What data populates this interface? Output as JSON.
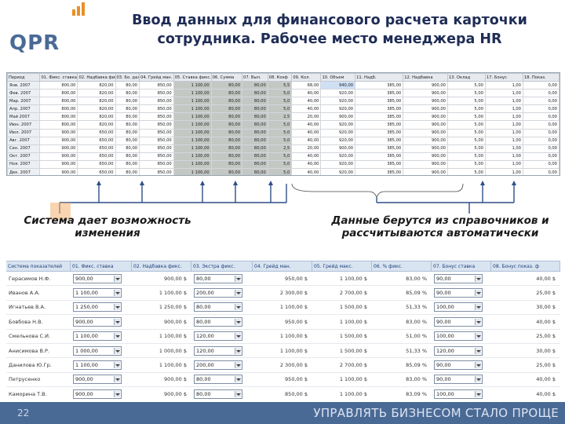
{
  "header": {
    "logo": "QPR",
    "title_line1": "Ввод данных для финансового расчета карточки",
    "title_line2": "сотрудника. Рабочее место менеджера HR"
  },
  "top_grid": {
    "columns": [
      "Период",
      "01. Фикс. ставка",
      "02. Надбавка фикс.",
      "03. Бо. дал.н.",
      "04. Грейд ман.",
      "05. Ставка фикс.",
      "06. Сумма",
      "07. Вып.",
      "08. Коэф",
      "09. Кол.",
      "10. Объем",
      "11. Надб.",
      "12. Надбавка",
      "13. Оклад",
      "17. Бонус",
      "18. Показ."
    ],
    "rows": [
      [
        "Янв. 2007",
        "800,00",
        "820,00",
        "80,00",
        "850,00",
        "1 100,00",
        "80,00",
        "80,00",
        "5,5",
        "68,00",
        "940,00",
        "385,00",
        "900,00",
        "5,00",
        "1,00",
        "0,00"
      ],
      [
        "Фев. 2007",
        "800,00",
        "820,00",
        "80,00",
        "850,00",
        "1 100,00",
        "80,00",
        "80,00",
        "5,0",
        "40,00",
        "920,00",
        "385,00",
        "900,00",
        "5,00",
        "1,00",
        "0,00"
      ],
      [
        "Мар. 2007",
        "800,00",
        "820,00",
        "80,00",
        "850,00",
        "1 100,00",
        "80,00",
        "80,00",
        "5,0",
        "40,00",
        "920,00",
        "385,00",
        "900,00",
        "5,00",
        "1,00",
        "0,00"
      ],
      [
        "Апр. 2007",
        "800,00",
        "820,00",
        "80,00",
        "850,00",
        "1 100,00",
        "80,00",
        "80,00",
        "5,0",
        "40,00",
        "920,00",
        "385,00",
        "900,00",
        "5,00",
        "1,00",
        "0,00"
      ],
      [
        "Май 2007",
        "800,00",
        "820,00",
        "80,00",
        "850,00",
        "1 100,00",
        "80,00",
        "80,00",
        "2,5",
        "20,00",
        "900,00",
        "385,00",
        "900,00",
        "5,00",
        "1,00",
        "0,00"
      ],
      [
        "Июн. 2007",
        "800,00",
        "820,00",
        "80,00",
        "850,00",
        "1 100,00",
        "80,00",
        "80,00",
        "5,0",
        "40,00",
        "920,00",
        "385,00",
        "900,00",
        "5,00",
        "1,00",
        "0,00"
      ],
      [
        "Июл. 2007",
        "900,00",
        "650,00",
        "80,00",
        "850,00",
        "1 100,00",
        "80,00",
        "80,00",
        "5,0",
        "40,00",
        "920,00",
        "385,00",
        "900,00",
        "5,00",
        "1,00",
        "0,00"
      ],
      [
        "Авг. 2007",
        "900,00",
        "650,00",
        "80,00",
        "850,00",
        "1 100,00",
        "80,00",
        "80,00",
        "5,0",
        "40,00",
        "920,00",
        "385,00",
        "900,00",
        "5,00",
        "1,00",
        "0,00"
      ],
      [
        "Сен. 2007",
        "900,00",
        "650,00",
        "80,00",
        "850,00",
        "1 100,00",
        "80,00",
        "80,00",
        "2,5",
        "20,00",
        "900,00",
        "385,00",
        "900,00",
        "5,00",
        "1,00",
        "0,00"
      ],
      [
        "Окт. 2007",
        "900,00",
        "650,00",
        "80,00",
        "850,00",
        "1 100,00",
        "80,00",
        "80,00",
        "5,0",
        "40,00",
        "920,00",
        "385,00",
        "900,00",
        "5,00",
        "1,00",
        "0,00"
      ],
      [
        "Ноя. 2007",
        "900,00",
        "650,00",
        "80,00",
        "850,00",
        "1 100,00",
        "80,00",
        "80,00",
        "5,0",
        "40,00",
        "920,00",
        "385,00",
        "900,00",
        "5,00",
        "1,00",
        "0,00"
      ],
      [
        "Дек. 2007",
        "900,00",
        "650,00",
        "80,00",
        "850,00",
        "1 100,00",
        "80,00",
        "80,00",
        "5,0",
        "40,00",
        "920,00",
        "385,00",
        "900,00",
        "5,00",
        "1,00",
        "0,00"
      ]
    ]
  },
  "captions": {
    "left": "Система дает возможность изменения",
    "right": "Данные берутся из справочников и рассчитываются автоматически"
  },
  "bottom_grid": {
    "columns": [
      "Система показателей",
      "01. Фикс. ставка",
      "02. Надбавка фикс.",
      "03. Экстра фикс.",
      "04. Грейд ман.",
      "05. Грейд макс.",
      "06. % фикс.",
      "07. Бонус ставка",
      "08. Бонус показ. ф"
    ],
    "rows": [
      {
        "name": "Герасимов Н.Ф.",
        "v1": "900,00",
        "v2": "900,00 $",
        "v3": "80,00",
        "v4": "950,00 $",
        "v5": "1 100,00 $",
        "v6": "83,00 %",
        "v7": "90,00",
        "v8": "40,00 $"
      },
      {
        "name": "Иванов А.А.",
        "v1": "1 100,00",
        "v2": "1 100,00 $",
        "v3": "200,00",
        "v4": "2 300,00 $",
        "v5": "2 700,00 $",
        "v6": "85,09 %",
        "v7": "90,00",
        "v8": "25,00 $"
      },
      {
        "name": "Игнатьев В.А.",
        "v1": "1 250,00",
        "v2": "1 250,00 $",
        "v3": "80,00",
        "v4": "1 100,00 $",
        "v5": "1 500,00 $",
        "v6": "51,33 %",
        "v7": "100,00",
        "v8": "30,00 $"
      },
      {
        "name": "Бовбова Н.В.",
        "v1": "900,00",
        "v2": "900,00 $",
        "v3": "80,00",
        "v4": "950,00 $",
        "v5": "1 100,00 $",
        "v6": "83,00 %",
        "v7": "90,00",
        "v8": "40,00 $"
      },
      {
        "name": "Смельнова С.И.",
        "v1": "1 100,00",
        "v2": "1 100,00 $",
        "v3": "120,00",
        "v4": "1 100,00 $",
        "v5": "1 500,00 $",
        "v6": "51,00 %",
        "v7": "100,00",
        "v8": "25,00 $"
      },
      {
        "name": "Анисимова В.Р.",
        "v1": "1 000,00",
        "v2": "1 000,00 $",
        "v3": "120,00",
        "v4": "1 100,00 $",
        "v5": "1 500,00 $",
        "v6": "51,33 %",
        "v7": "120,00",
        "v8": "30,00 $"
      },
      {
        "name": "Данилова Ю.Гр.",
        "v1": "1 100,00",
        "v2": "1 100,00 $",
        "v3": "200,00",
        "v4": "2 300,00 $",
        "v5": "2 700,00 $",
        "v6": "85,09 %",
        "v7": "90,00",
        "v8": "25,00 $"
      },
      {
        "name": "Петрусенко",
        "v1": "900,00",
        "v2": "900,00 $",
        "v3": "80,00",
        "v4": "950,00 $",
        "v5": "1 100,00 $",
        "v6": "83,00 %",
        "v7": "90,00",
        "v8": "40,00 $"
      },
      {
        "name": "Каморина Т.В.",
        "v1": "900,00",
        "v2": "900,00 $",
        "v3": "80,00",
        "v4": "850,00 $",
        "v5": "1 100,00 $",
        "v6": "83,09 %",
        "v7": "100,00",
        "v8": "40,00 $"
      }
    ]
  },
  "footer": {
    "page_number": "22",
    "slogan": "УПРАВЛЯТЬ БИЗНЕСОМ СТАЛО ПРОЩЕ"
  },
  "colors": {
    "brand_blue": "#4a6a96",
    "brand_orange": "#e7902a",
    "title": "#1e2c55",
    "calc_cell": "#c4c8c4",
    "selected_cell": "#cfe0f5"
  }
}
